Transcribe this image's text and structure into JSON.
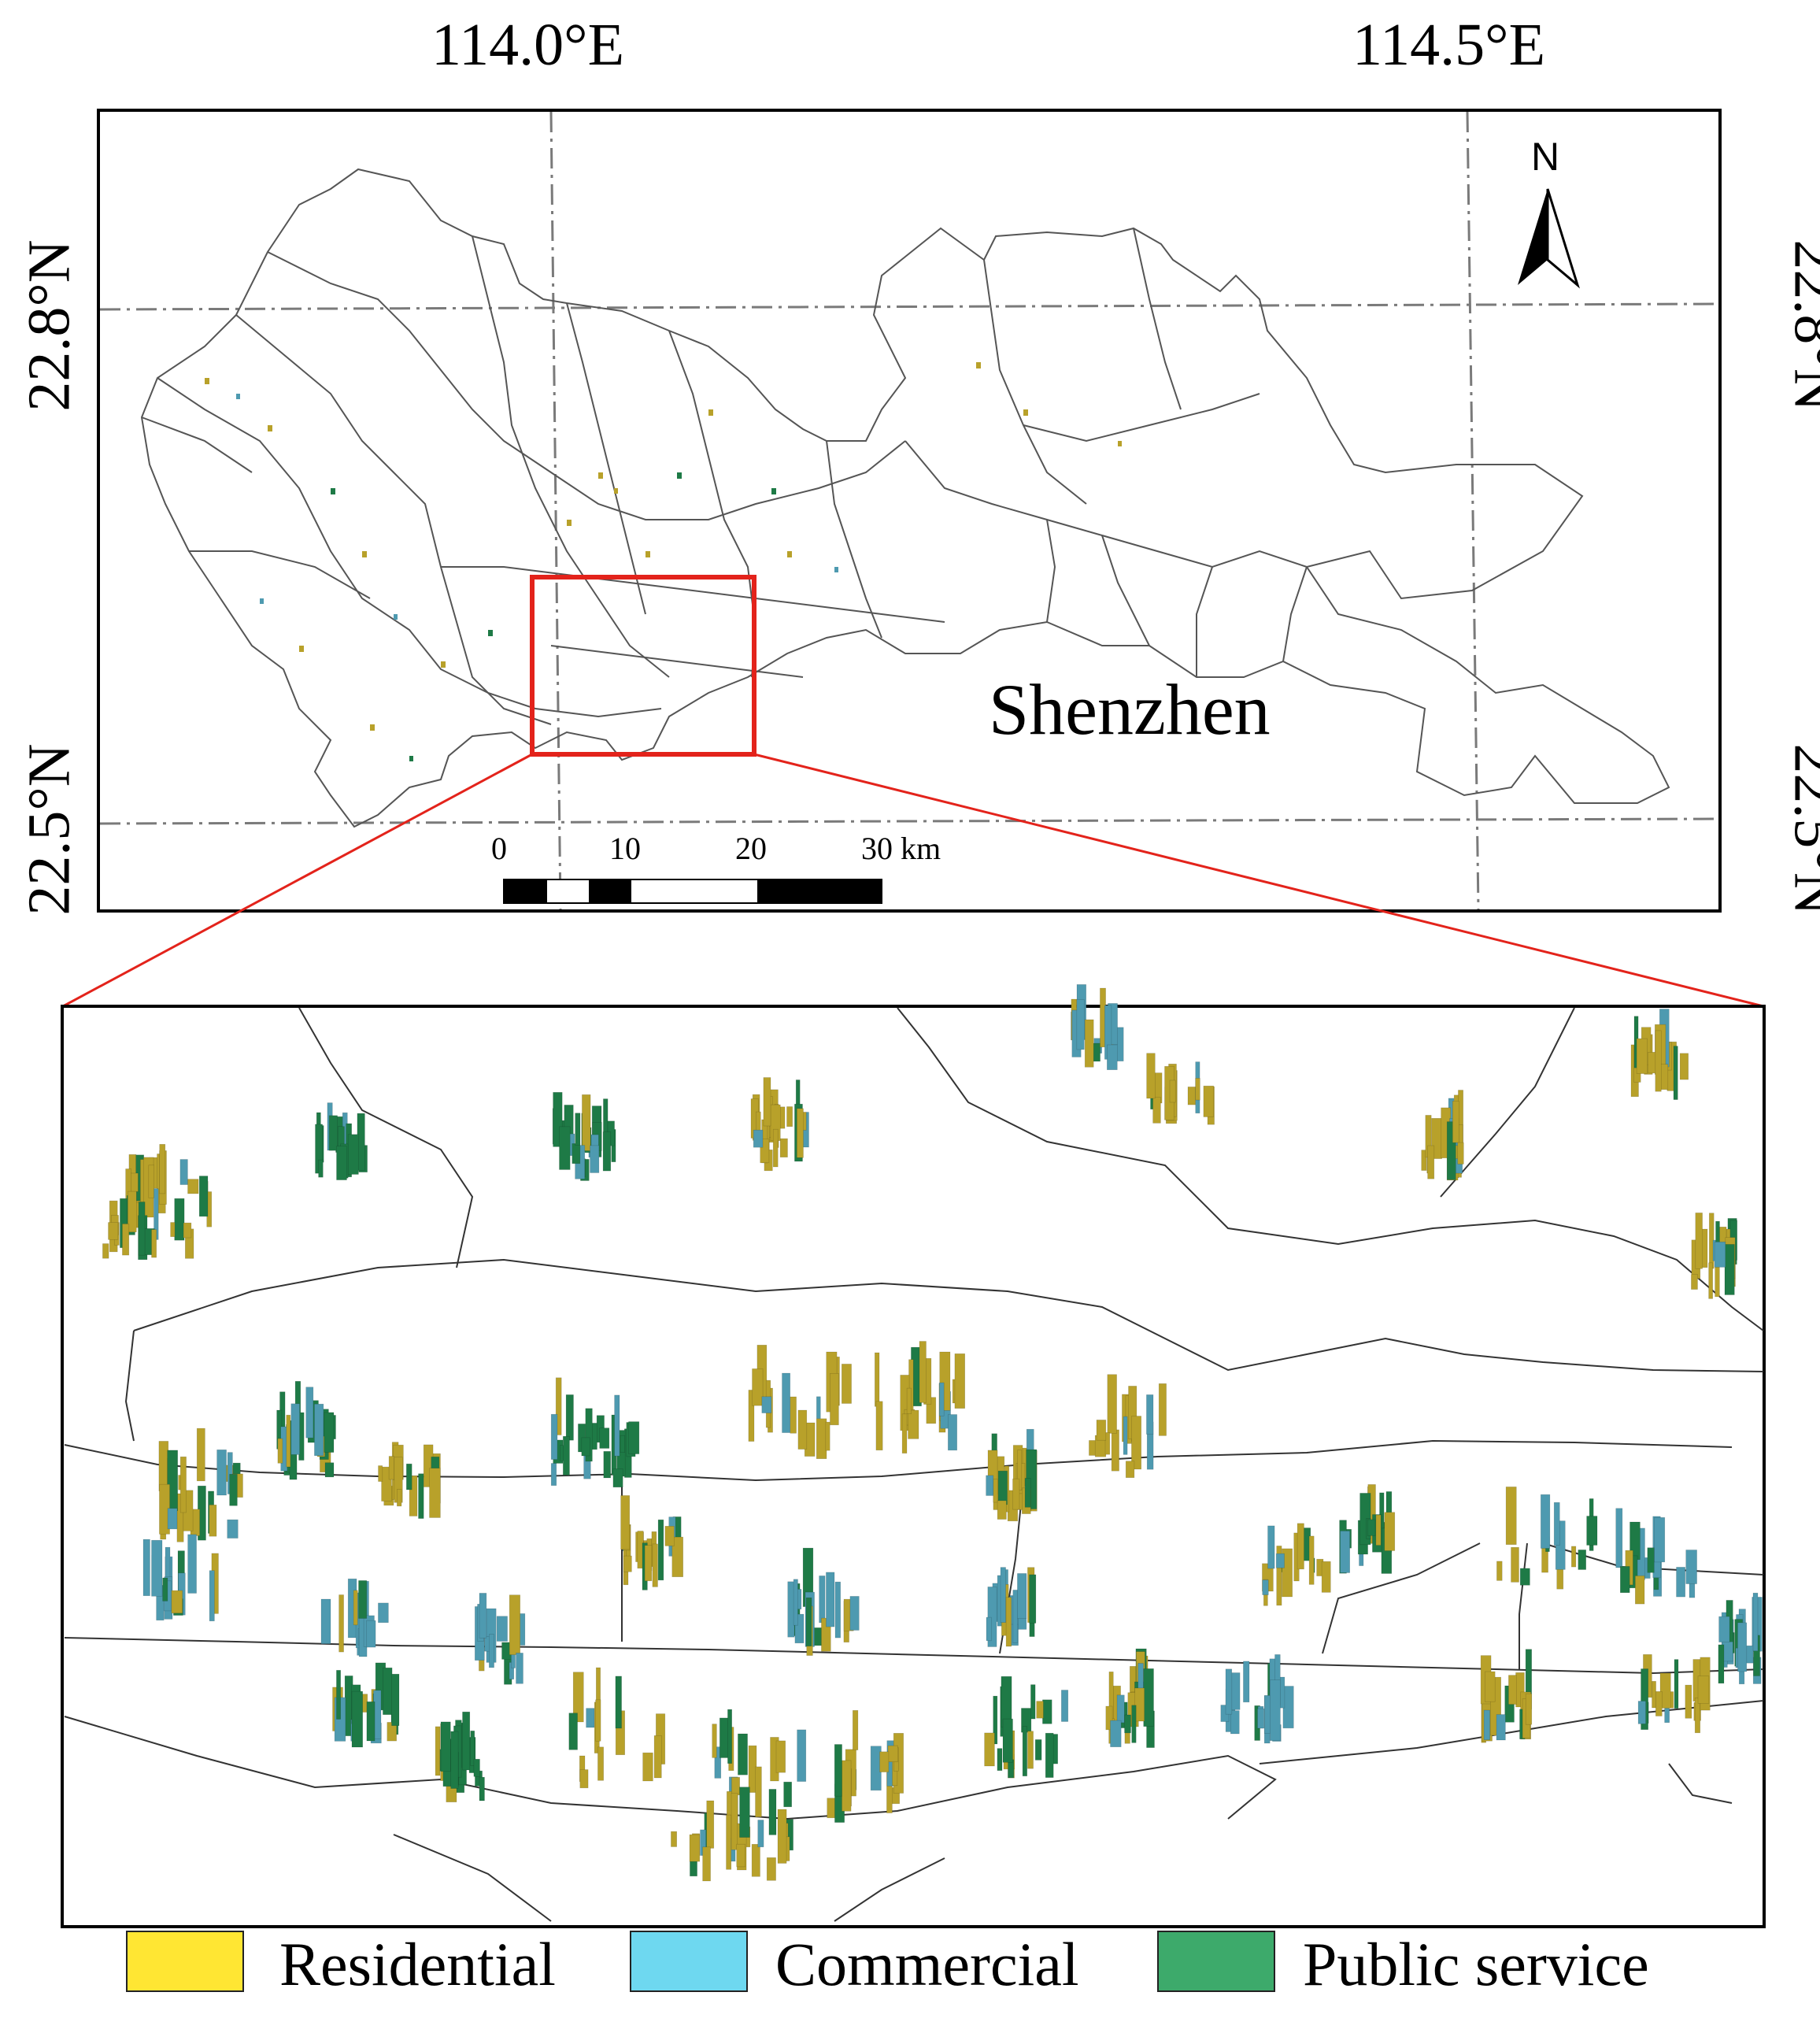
{
  "graticule": {
    "lon_labels": [
      "114.0°E",
      "114.5°E"
    ],
    "lat_labels": [
      "22.8°N",
      "22.5°N"
    ]
  },
  "north_arrow": {
    "label": "N",
    "icon": "north-arrow-icon"
  },
  "place_label": "Shenzhen",
  "scale_bar": {
    "ticks": [
      "0",
      "10",
      "20",
      "30 km"
    ]
  },
  "legend": [
    {
      "label": "Residential",
      "color": "#FFE633"
    },
    {
      "label": "Commercial",
      "color": "#6ED8F0"
    },
    {
      "label": "Public service",
      "color": "#3DAA6B"
    }
  ],
  "colors": {
    "residential_bar": "#B8A12A",
    "commercial_bar": "#4E9AB0",
    "public_bar": "#1E7A46",
    "highlight_box": "#E3231B"
  }
}
